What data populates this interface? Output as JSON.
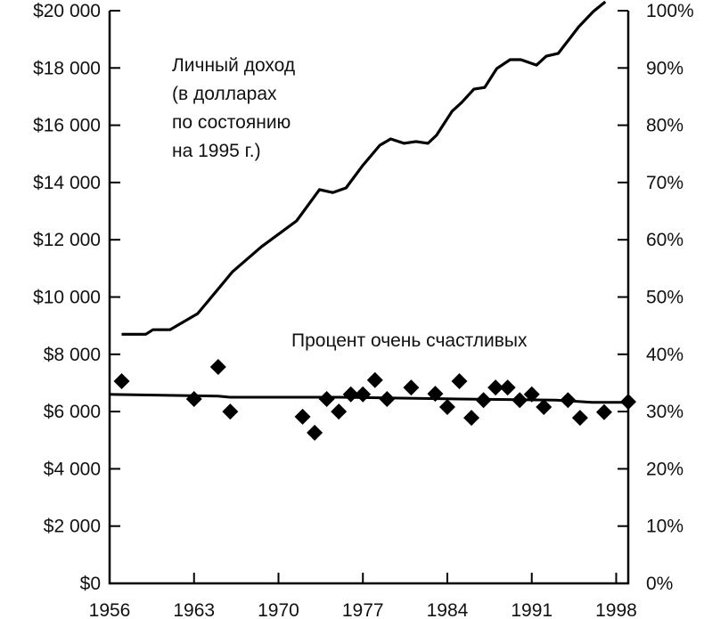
{
  "chart_data": {
    "type": "line",
    "title": "",
    "x": {
      "label": "",
      "range": [
        1956,
        1999
      ],
      "ticks": [
        1956,
        1963,
        1970,
        1977,
        1984,
        1991,
        1998
      ]
    },
    "y_left": {
      "label": "",
      "range": [
        0,
        20000
      ],
      "tick_labels": [
        "$0",
        "$2 000",
        "$4 000",
        "$6 000",
        "$8 000",
        "$10 000",
        "$12 000",
        "$14 000",
        "$16 000",
        "$18 000",
        "$20 000"
      ],
      "ticks": [
        0,
        2000,
        4000,
        6000,
        8000,
        10000,
        12000,
        14000,
        16000,
        18000,
        20000
      ]
    },
    "y_right": {
      "label": "",
      "range": [
        0,
        100
      ],
      "tick_labels": [
        "0%",
        "10%",
        "20%",
        "30%",
        "40%",
        "50%",
        "60%",
        "70%",
        "80%",
        "90%",
        "100%"
      ],
      "ticks": [
        0,
        10,
        20,
        30,
        40,
        50,
        60,
        70,
        80,
        90,
        100
      ]
    },
    "grid": false,
    "annotations": {
      "income_label": [
        "Личный доход",
        "(в долларах",
        "по состоянию",
        "на 1995 г.)"
      ],
      "happy_label": "Процент очень счастливых"
    },
    "series": [
      {
        "name": "Личный доход (в долларах по состоянию на 1995 г.)",
        "type": "line",
        "axis": "left",
        "points": [
          [
            1957,
            8700
          ],
          [
            1959,
            8700
          ],
          [
            1959.6,
            8860
          ],
          [
            1961,
            8860
          ],
          [
            1963.3,
            9420
          ],
          [
            1966.2,
            10890
          ],
          [
            1968.6,
            11760
          ],
          [
            1971.5,
            12660
          ],
          [
            1973.4,
            13750
          ],
          [
            1974.5,
            13650
          ],
          [
            1975.6,
            13810
          ],
          [
            1977,
            14600
          ],
          [
            1978.4,
            15300
          ],
          [
            1979.3,
            15520
          ],
          [
            1980.4,
            15370
          ],
          [
            1981.4,
            15430
          ],
          [
            1982.4,
            15370
          ],
          [
            1983.1,
            15650
          ],
          [
            1984.4,
            16490
          ],
          [
            1985.2,
            16800
          ],
          [
            1986.2,
            17260
          ],
          [
            1987.1,
            17320
          ],
          [
            1988.1,
            17980
          ],
          [
            1989.2,
            18290
          ],
          [
            1990.1,
            18290
          ],
          [
            1991.4,
            18100
          ],
          [
            1992.2,
            18410
          ],
          [
            1993.2,
            18510
          ],
          [
            1994.9,
            19440
          ],
          [
            1996.1,
            19970
          ],
          [
            1997.1,
            20310
          ]
        ]
      },
      {
        "name": "Процент очень счастливых",
        "type": "scatter",
        "axis": "right",
        "marker": "diamond",
        "points": [
          [
            1957,
            35.3
          ],
          [
            1963,
            32.2
          ],
          [
            1965,
            37.8
          ],
          [
            1966,
            30.0
          ],
          [
            1972,
            29.1
          ],
          [
            1973,
            26.3
          ],
          [
            1974,
            32.2
          ],
          [
            1975,
            30.0
          ],
          [
            1976,
            33.0
          ],
          [
            1977,
            33.0
          ],
          [
            1978,
            35.5
          ],
          [
            1979,
            32.2
          ],
          [
            1981,
            34.2
          ],
          [
            1983,
            33.1
          ],
          [
            1984,
            30.8
          ],
          [
            1985,
            35.3
          ],
          [
            1986,
            28.9
          ],
          [
            1987,
            32.0
          ],
          [
            1988,
            34.2
          ],
          [
            1989,
            34.2
          ],
          [
            1990,
            32.0
          ],
          [
            1991,
            33.0
          ],
          [
            1992,
            30.8
          ],
          [
            1994,
            32.0
          ],
          [
            1995,
            28.9
          ],
          [
            1997,
            29.9
          ],
          [
            1999,
            31.7
          ]
        ]
      },
      {
        "type": "line",
        "axis": "right",
        "role": "trend",
        "points": [
          [
            1956,
            33.0
          ],
          [
            1965,
            32.7
          ],
          [
            1966,
            32.5
          ],
          [
            1975,
            32.5
          ],
          [
            1985,
            32.2
          ],
          [
            1993,
            32.0
          ],
          [
            1996,
            31.6
          ],
          [
            1999,
            31.6
          ]
        ]
      }
    ],
    "colors": {
      "ink": "#000000",
      "background": "#ffffff"
    }
  }
}
